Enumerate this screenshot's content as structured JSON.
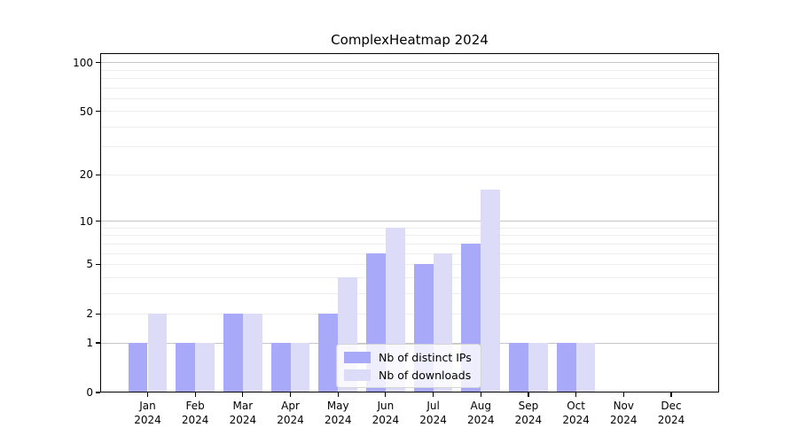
{
  "chart_data": {
    "type": "bar",
    "title": "ComplexHeatmap 2024",
    "x_year": "2024",
    "categories": [
      "Jan",
      "Feb",
      "Mar",
      "Apr",
      "May",
      "Jun",
      "Jul",
      "Aug",
      "Sep",
      "Oct",
      "Nov",
      "Dec"
    ],
    "series": [
      {
        "name": "Nb of distinct IPs",
        "color": "#a9a9f9",
        "values": [
          1,
          1,
          2,
          1,
          2,
          6,
          5,
          7,
          1,
          1,
          0,
          0
        ]
      },
      {
        "name": "Nb of downloads",
        "color": "#dcdcf9",
        "values": [
          2,
          1,
          2,
          1,
          4,
          9,
          6,
          16,
          1,
          1,
          0,
          0
        ]
      }
    ],
    "y_scale": "log1p",
    "ylim": [
      0,
      114
    ],
    "y_ticks": [
      0,
      1,
      2,
      5,
      10,
      20,
      50,
      100
    ],
    "y_tick_labels": [
      "0",
      "1",
      "2",
      "5",
      "10",
      "20",
      "50",
      "100"
    ],
    "grid": {
      "on": true,
      "major_values": [
        1,
        10,
        100
      ],
      "minor_values": [
        2,
        3,
        4,
        5,
        6,
        7,
        8,
        9,
        20,
        30,
        40,
        50,
        60,
        70,
        80,
        90
      ],
      "major_color": "#c6c6c6",
      "minor_color": "#ededed"
    },
    "legend_position": "lower center",
    "axis_color": "#000000",
    "background_color": "#ffffff"
  }
}
